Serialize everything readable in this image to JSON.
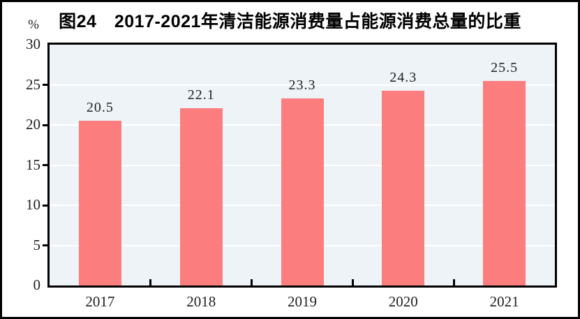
{
  "chart": {
    "title": "图24　2017-2021年清洁能源消费量占能源消费总量的比重",
    "unit_label": "%"
  },
  "chart_data": {
    "type": "bar",
    "title": "图24 2017-2021年清洁能源消费量占能源消费总量的比重",
    "figure_number": "图24",
    "ylabel": "%",
    "xlabel": "",
    "categories": [
      "2017",
      "2018",
      "2019",
      "2020",
      "2021"
    ],
    "values": [
      20.5,
      22.1,
      23.3,
      24.3,
      25.5
    ],
    "value_labels": [
      "20.5",
      "22.1",
      "23.3",
      "24.3",
      "25.5"
    ],
    "ylim": [
      0,
      30
    ],
    "yticks": [
      0,
      5,
      10,
      15,
      20,
      25,
      30
    ],
    "grid_values": [
      5,
      10,
      15,
      20,
      25
    ],
    "grid": "horizontal-white-lines-behind-bars",
    "legend": "none",
    "colors": {
      "bar": "#fc7d7d",
      "plot_bg": "#edf3f7",
      "grid": "#ffffff",
      "axis": "#000000",
      "text": "#1f1f1f"
    }
  }
}
